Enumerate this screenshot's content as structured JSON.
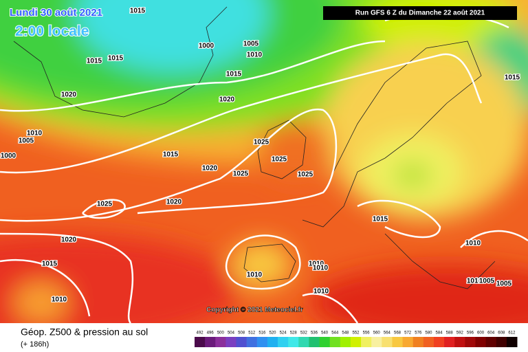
{
  "header": {
    "title": "Lundi 30 août 2021",
    "time": "2:00 locale",
    "run": "Run GFS 6 Z du Dimanche 22 août 2021"
  },
  "copyright": "Copyright © 2021 Meteociel.fr",
  "footer": {
    "title": "Géop. Z500 & pression au sol",
    "lead": "(+ 186h)"
  },
  "colorbar": {
    "labels": [
      492,
      496,
      500,
      504,
      508,
      512,
      516,
      520,
      524,
      528,
      532,
      536,
      540,
      544,
      548,
      552,
      556,
      560,
      564,
      568,
      572,
      576,
      580,
      584,
      588,
      592,
      596,
      600,
      604,
      608,
      612
    ],
    "colors": [
      "#4b0b4b",
      "#6b1b7b",
      "#8b2f9b",
      "#7a3fc0",
      "#5050d0",
      "#4070e0",
      "#3090f0",
      "#20b0f0",
      "#30d0f0",
      "#40e8e8",
      "#30d8b0",
      "#20c070",
      "#30d030",
      "#70e020",
      "#a0f000",
      "#d0f000",
      "#f0f060",
      "#f8f0a0",
      "#f8e070",
      "#f8c840",
      "#f8a830",
      "#f08020",
      "#f06020",
      "#f04020",
      "#e02020",
      "#c01010",
      "#a00808",
      "#800000",
      "#600000",
      "#400000",
      "#100000"
    ]
  },
  "isobar_labels": [
    "1015",
    "1000",
    "1005",
    "1010",
    "1015",
    "1015",
    "1015",
    "1020",
    "1020",
    "1010",
    "1005",
    "1000",
    "1015",
    "1020",
    "1025",
    "1025",
    "1025",
    "1025",
    "1025",
    "1020",
    "1020",
    "1015",
    "1015",
    "1010",
    "1010",
    "1010",
    "1010",
    "1010",
    "1010",
    "1005",
    "1005",
    "1010",
    "1015"
  ]
}
